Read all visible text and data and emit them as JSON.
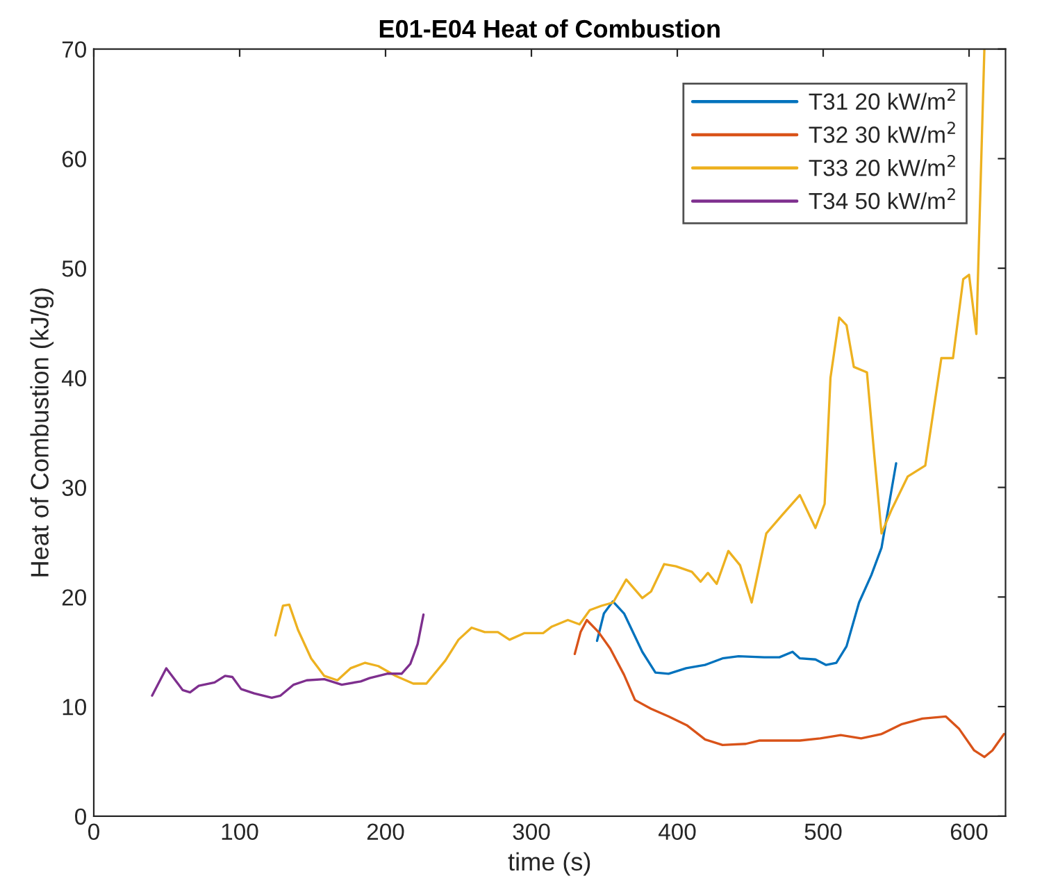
{
  "chart_data": {
    "type": "line",
    "title": "E01-E04 Heat of Combustion",
    "xlabel": "time (s)",
    "ylabel": "Heat of Combustion (kJ/g)",
    "xlim": [
      0,
      625
    ],
    "ylim": [
      0,
      70
    ],
    "xticks": [
      0,
      100,
      200,
      300,
      400,
      500,
      600
    ],
    "yticks": [
      0,
      10,
      20,
      30,
      40,
      50,
      60,
      70
    ],
    "grid": false,
    "legend": "top right",
    "series": [
      {
        "name": "T31 20 kW/m$^{2}$",
        "color": "#0072bd",
        "x": [
          345,
          349.7,
          355.8,
          363.5,
          376,
          385,
          394,
          406,
          419,
          431,
          442,
          459.6,
          470,
          479,
          484,
          494.7,
          502,
          509,
          516,
          524.6,
          533,
          540,
          550
        ],
        "values": [
          16.0,
          18.5,
          19.6,
          18.5,
          15.0,
          13.1,
          13.0,
          13.5,
          13.8,
          14.4,
          14.6,
          14.5,
          14.5,
          15.0,
          14.4,
          14.3,
          13.8,
          14.0,
          15.5,
          19.5,
          22,
          24.5,
          32.2
        ]
      },
      {
        "name": "T32 30 kW/m$^{2}$",
        "color": "#d95319",
        "x": [
          329.7,
          333.7,
          338,
          346,
          354,
          363.5,
          371,
          382,
          394,
          406.5,
          419,
          431,
          447,
          456,
          472,
          484,
          498,
          512,
          526,
          540,
          554,
          568,
          584,
          593,
          603.5,
          610.5,
          616,
          624
        ],
        "values": [
          14.8,
          16.8,
          17.9,
          16.8,
          15.3,
          12.9,
          10.6,
          9.8,
          9.1,
          8.3,
          7.0,
          6.5,
          6.6,
          6.9,
          6.9,
          6.9,
          7.1,
          7.4,
          7.1,
          7.5,
          8.4,
          8.9,
          9.1,
          8.0,
          6.0,
          5.4,
          6.0,
          7.5
        ]
      },
      {
        "name": "T33 20 kW/m$^{2}$",
        "color": "#edb120",
        "x": [
          124.5,
          129.7,
          134,
          140,
          149,
          158,
          167,
          176,
          186,
          195,
          207,
          219,
          228,
          241,
          250,
          259,
          268,
          277,
          285,
          295,
          308,
          314,
          325,
          333,
          340,
          348,
          356,
          365,
          376,
          382,
          391,
          399,
          410,
          416,
          421,
          427,
          435,
          443,
          451,
          461,
          472,
          484,
          494.7,
          501,
          505,
          511,
          516,
          521,
          530,
          535,
          540,
          547,
          558,
          570,
          581,
          589,
          596,
          600,
          605,
          610.5
        ],
        "values": [
          16.5,
          19.2,
          19.3,
          17.0,
          14.4,
          12.8,
          12.4,
          13.5,
          14.0,
          13.7,
          12.8,
          12.1,
          12.1,
          14.2,
          16.1,
          17.2,
          16.8,
          16.8,
          16.1,
          16.7,
          16.7,
          17.3,
          17.9,
          17.5,
          18.8,
          19.2,
          19.5,
          21.6,
          19.9,
          20.5,
          23.0,
          22.8,
          22.3,
          21.4,
          22.2,
          21.2,
          24.2,
          22.9,
          19.5,
          25.8,
          27.5,
          29.3,
          26.3,
          28.5,
          40,
          45.5,
          44.8,
          41,
          40.5,
          33,
          25.8,
          28,
          31,
          32,
          41.8,
          41.8,
          49,
          49.4,
          44,
          70
        ]
      },
      {
        "name": "T34 50 kW/m$^{2}$",
        "color": "#7e2f8e",
        "x": [
          40,
          49.7,
          61,
          66,
          72,
          82.8,
          90,
          95,
          101,
          110,
          122,
          128,
          137,
          146,
          158,
          170,
          183,
          189,
          201,
          211,
          217,
          222,
          226
        ],
        "values": [
          11.0,
          13.5,
          11.5,
          11.3,
          11.9,
          12.2,
          12.8,
          12.7,
          11.6,
          11.2,
          10.8,
          11.0,
          12.0,
          12.4,
          12.5,
          12.0,
          12.3,
          12.6,
          13.0,
          13.0,
          13.9,
          15.7,
          18.4
        ]
      }
    ]
  }
}
